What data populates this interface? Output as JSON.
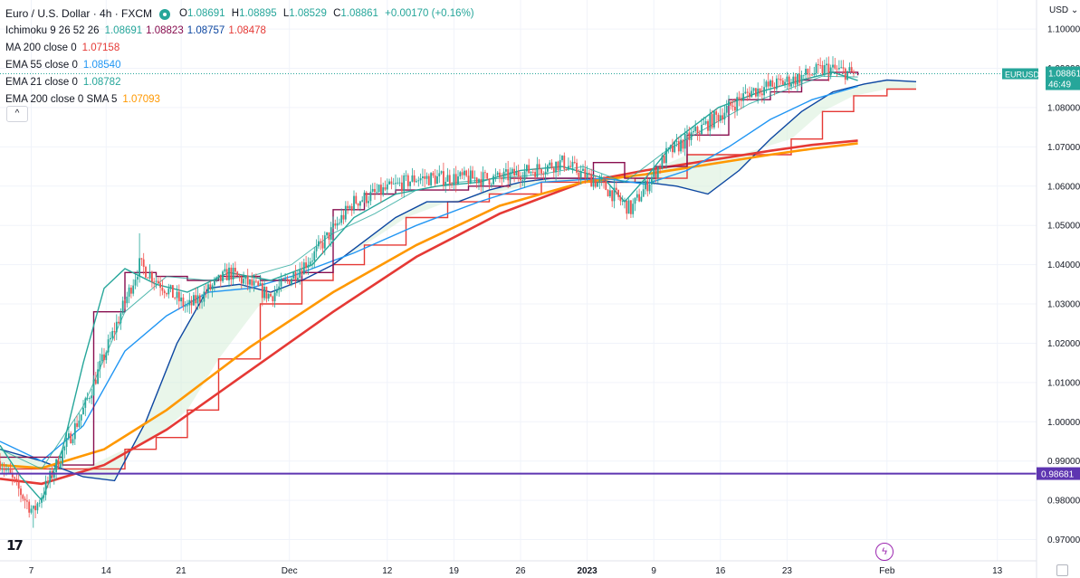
{
  "header": {
    "symbol_title": "Euro / U.S. Dollar · 4h · FXCM",
    "ohlc": [
      {
        "label": "O",
        "value": "1.08691"
      },
      {
        "label": "H",
        "value": "1.08895"
      },
      {
        "label": "L",
        "value": "1.08529"
      },
      {
        "label": "C",
        "value": "1.08861"
      }
    ],
    "change": "+0.00170 (+0.16%)"
  },
  "indicators": [
    {
      "label": "Ichimoku 9 26 52 26",
      "values": [
        {
          "v": "1.08691",
          "color": "#26a69a"
        },
        {
          "v": "1.08823",
          "color": "#880e4f"
        },
        {
          "v": "1.08757",
          "color": "#0d47a1"
        },
        {
          "v": "1.08478",
          "color": "#e53935"
        }
      ]
    },
    {
      "label": "MA 200 close 0",
      "values": [
        {
          "v": "1.07158",
          "color": "#e53935"
        }
      ]
    },
    {
      "label": "EMA 55 close 0",
      "values": [
        {
          "v": "1.08540",
          "color": "#2196f3"
        }
      ]
    },
    {
      "label": "EMA 21 close 0",
      "values": [
        {
          "v": "1.08782",
          "color": "#26a69a"
        }
      ]
    },
    {
      "label": "EMA 200 close 0 SMA 5",
      "values": [
        {
          "v": "1.07093",
          "color": "#ff9800"
        }
      ]
    }
  ],
  "collapse_glyph": "^",
  "logo_text": "17",
  "bolt_glyph": "ϟ",
  "colors": {
    "up": "#26a69a",
    "down": "#ef5350",
    "tenkan": "#26a69a",
    "kijun": "#880e4f",
    "ema21": "#26a69a",
    "ema55": "#2196f3",
    "ma200": "#e53935",
    "ema200": "#ff9800",
    "span_a": "#0d47a1",
    "span_b": "#e53935",
    "cloud": "#d7eed9",
    "hline": "#5e35b1",
    "price_label": "#26a69a"
  },
  "chart_data": {
    "type": "candlestick",
    "currency": "USD",
    "y_ticks": [
      "1.10000",
      "1.09000",
      "1.08000",
      "1.07000",
      "1.06000",
      "1.05000",
      "1.04000",
      "1.03000",
      "1.02000",
      "1.01000",
      "1.00000",
      "0.99000",
      "0.98000",
      "0.97000"
    ],
    "y_tick_values": [
      1.1,
      1.09,
      1.08,
      1.07,
      1.06,
      1.05,
      1.04,
      1.03,
      1.02,
      1.01,
      1.0,
      0.99,
      0.98,
      0.97
    ],
    "ylim": [
      0.9646,
      1.1067
    ],
    "x_ticks": [
      {
        "label": "7",
        "bar": 15,
        "bold": false
      },
      {
        "label": "14",
        "bar": 51,
        "bold": false
      },
      {
        "label": "21",
        "bar": 87,
        "bold": false
      },
      {
        "label": "Dec",
        "bar": 139,
        "bold": false
      },
      {
        "label": "12",
        "bar": 186,
        "bold": false
      },
      {
        "label": "19",
        "bar": 218,
        "bold": false
      },
      {
        "label": "26",
        "bar": 250,
        "bold": false
      },
      {
        "label": "2023",
        "bar": 282,
        "bold": true
      },
      {
        "label": "9",
        "bar": 314,
        "bold": false
      },
      {
        "label": "16",
        "bar": 346,
        "bold": false
      },
      {
        "label": "23",
        "bar": 378,
        "bold": false
      },
      {
        "label": "Feb",
        "bar": 426,
        "bold": false
      },
      {
        "label": "13",
        "bar": 479,
        "bold": false
      }
    ],
    "last_price": {
      "symbol": "EURUSD",
      "value": "1.08861",
      "countdown": "46:49",
      "price": 1.08861
    },
    "hline": {
      "value": "0.98681",
      "price": 0.98681
    },
    "key_points": {
      "low": {
        "bar": 16,
        "price": 0.973
      },
      "spike_high": {
        "bar": 67,
        "price": 1.048
      },
      "high": {
        "bar": 397,
        "price": 1.0928
      },
      "last": {
        "bar": 410,
        "price": 1.08861
      }
    },
    "ma200_path": [
      [
        0,
        0.9855
      ],
      [
        20,
        0.9842
      ],
      [
        50,
        0.989
      ],
      [
        80,
        0.998
      ],
      [
        120,
        1.013
      ],
      [
        160,
        1.028
      ],
      [
        200,
        1.042
      ],
      [
        240,
        1.053
      ],
      [
        280,
        1.061
      ],
      [
        310,
        1.064
      ],
      [
        340,
        1.0665
      ],
      [
        370,
        1.069
      ],
      [
        390,
        1.0705
      ],
      [
        412,
        1.0716
      ]
    ],
    "ema200_path": [
      [
        0,
        0.989
      ],
      [
        20,
        0.9882
      ],
      [
        50,
        0.993
      ],
      [
        80,
        1.003
      ],
      [
        120,
        1.019
      ],
      [
        160,
        1.033
      ],
      [
        200,
        1.045
      ],
      [
        240,
        1.055
      ],
      [
        280,
        1.061
      ],
      [
        310,
        1.063
      ],
      [
        340,
        1.0655
      ],
      [
        370,
        1.068
      ],
      [
        390,
        1.0695
      ],
      [
        412,
        1.0709
      ]
    ],
    "ema55_path": [
      [
        0,
        0.995
      ],
      [
        20,
        0.99
      ],
      [
        40,
        0.999
      ],
      [
        60,
        1.018
      ],
      [
        80,
        1.027
      ],
      [
        100,
        1.033
      ],
      [
        120,
        1.034
      ],
      [
        140,
        1.037
      ],
      [
        170,
        1.043
      ],
      [
        200,
        1.05
      ],
      [
        230,
        1.056
      ],
      [
        260,
        1.061
      ],
      [
        290,
        1.062
      ],
      [
        310,
        1.0605
      ],
      [
        330,
        1.064
      ],
      [
        350,
        1.07
      ],
      [
        370,
        1.077
      ],
      [
        390,
        1.082
      ],
      [
        412,
        1.0854
      ]
    ],
    "ema21_path": [
      [
        0,
        0.993
      ],
      [
        20,
        0.988
      ],
      [
        40,
        1.004
      ],
      [
        60,
        1.028
      ],
      [
        80,
        1.037
      ],
      [
        100,
        1.036
      ],
      [
        120,
        1.037
      ],
      [
        140,
        1.04
      ],
      [
        160,
        1.048
      ],
      [
        180,
        1.053
      ],
      [
        200,
        1.059
      ],
      [
        220,
        1.061
      ],
      [
        240,
        1.062
      ],
      [
        260,
        1.063
      ],
      [
        280,
        1.065
      ],
      [
        300,
        1.061
      ],
      [
        320,
        1.069
      ],
      [
        340,
        1.075
      ],
      [
        360,
        1.081
      ],
      [
        380,
        1.085
      ],
      [
        395,
        1.088
      ],
      [
        412,
        1.0878
      ]
    ],
    "kijun_path": [
      [
        0,
        0.991
      ],
      [
        15,
        0.991
      ],
      [
        30,
        0.989
      ],
      [
        45,
        1.028
      ],
      [
        60,
        1.038
      ],
      [
        75,
        1.037
      ],
      [
        90,
        1.036
      ],
      [
        105,
        1.037
      ],
      [
        125,
        1.036
      ],
      [
        145,
        1.038
      ],
      [
        160,
        1.054
      ],
      [
        175,
        1.058
      ],
      [
        190,
        1.059
      ],
      [
        210,
        1.059
      ],
      [
        225,
        1.06
      ],
      [
        245,
        1.062
      ],
      [
        265,
        1.062
      ],
      [
        285,
        1.066
      ],
      [
        300,
        1.062
      ],
      [
        315,
        1.065
      ],
      [
        330,
        1.073
      ],
      [
        350,
        1.082
      ],
      [
        370,
        1.084
      ],
      [
        385,
        1.087
      ],
      [
        398,
        1.089
      ],
      [
        412,
        1.0882
      ]
    ],
    "tenkan_path": [
      [
        0,
        0.994
      ],
      [
        10,
        0.986
      ],
      [
        20,
        0.98
      ],
      [
        30,
        0.993
      ],
      [
        40,
        1.015
      ],
      [
        50,
        1.034
      ],
      [
        60,
        1.039
      ],
      [
        75,
        1.035
      ],
      [
        90,
        1.033
      ],
      [
        110,
        1.038
      ],
      [
        130,
        1.036
      ],
      [
        150,
        1.04
      ],
      [
        170,
        1.052
      ],
      [
        190,
        1.058
      ],
      [
        210,
        1.06
      ],
      [
        230,
        1.061
      ],
      [
        250,
        1.064
      ],
      [
        270,
        1.065
      ],
      [
        290,
        1.062
      ],
      [
        300,
        1.056
      ],
      [
        310,
        1.062
      ],
      [
        325,
        1.072
      ],
      [
        345,
        1.08
      ],
      [
        365,
        1.084
      ],
      [
        385,
        1.087
      ],
      [
        400,
        1.089
      ],
      [
        412,
        1.0869
      ]
    ],
    "span_a_path": [
      [
        0,
        0.993
      ],
      [
        20,
        0.99
      ],
      [
        40,
        0.986
      ],
      [
        55,
        0.985
      ],
      [
        70,
        1.0
      ],
      [
        85,
        1.02
      ],
      [
        100,
        1.034
      ],
      [
        115,
        1.035
      ],
      [
        130,
        1.033
      ],
      [
        145,
        1.036
      ],
      [
        160,
        1.04
      ],
      [
        175,
        1.046
      ],
      [
        190,
        1.052
      ],
      [
        205,
        1.056
      ],
      [
        220,
        1.056
      ],
      [
        235,
        1.059
      ],
      [
        250,
        1.061
      ],
      [
        265,
        1.062
      ],
      [
        280,
        1.062
      ],
      [
        295,
        1.061
      ],
      [
        310,
        1.061
      ],
      [
        325,
        1.06
      ],
      [
        340,
        1.058
      ],
      [
        355,
        1.064
      ],
      [
        370,
        1.072
      ],
      [
        385,
        1.079
      ],
      [
        400,
        1.084
      ],
      [
        415,
        1.086
      ],
      [
        426,
        1.087
      ],
      [
        440,
        1.0866
      ]
    ],
    "span_b_path": [
      [
        0,
        0.988
      ],
      [
        40,
        0.988
      ],
      [
        60,
        0.993
      ],
      [
        75,
        0.996
      ],
      [
        90,
        1.003
      ],
      [
        105,
        1.016
      ],
      [
        125,
        1.03
      ],
      [
        145,
        1.036
      ],
      [
        160,
        1.04
      ],
      [
        175,
        1.045
      ],
      [
        195,
        1.052
      ],
      [
        215,
        1.056
      ],
      [
        235,
        1.058
      ],
      [
        260,
        1.061
      ],
      [
        285,
        1.061
      ],
      [
        305,
        1.062
      ],
      [
        330,
        1.068
      ],
      [
        355,
        1.068
      ],
      [
        380,
        1.072
      ],
      [
        395,
        1.079
      ],
      [
        410,
        1.083
      ],
      [
        426,
        1.0847
      ],
      [
        440,
        1.0847
      ]
    ]
  }
}
